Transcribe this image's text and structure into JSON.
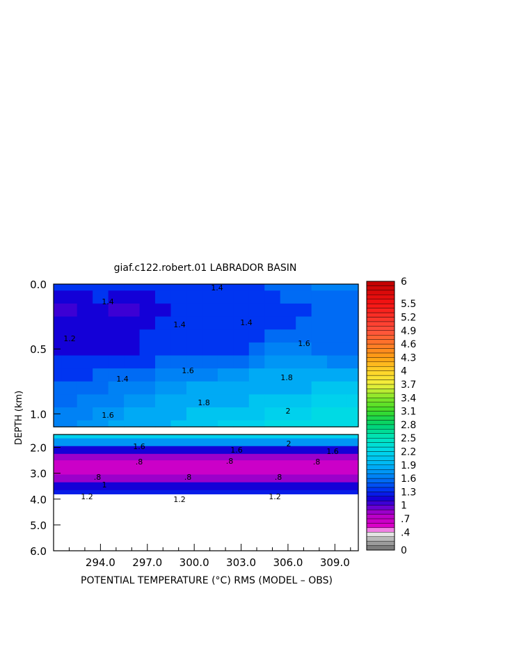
{
  "chart_data": {
    "type": "heatmap",
    "title": "giaf.c122.robert.01 LABRADOR BASIN",
    "xlabel": "POTENTIAL TEMPERATURE (°C) RMS (MODEL – OBS)",
    "ylabel": "DEPTH (km)",
    "xlim": [
      291.0,
      310.5
    ],
    "x_ticks": [
      "294.0",
      "297.0",
      "300.0",
      "303.0",
      "306.0",
      "309.0"
    ],
    "x_tick_values": [
      294.0,
      297.0,
      300.0,
      303.0,
      306.0,
      309.0
    ],
    "upper_panel": {
      "ylim": [
        0.0,
        1.1
      ],
      "y_ticks": [
        "0.0",
        "0.5",
        "1.0"
      ],
      "y_tick_values": [
        0.0,
        0.5,
        1.0
      ],
      "x": [
        291,
        292,
        293,
        294,
        295,
        296,
        297,
        298,
        299,
        300,
        301,
        302,
        303,
        304,
        305,
        306,
        307,
        308,
        309,
        310.5
      ],
      "depths": [
        0.0,
        0.1,
        0.2,
        0.3,
        0.4,
        0.5,
        0.6,
        0.7,
        0.8,
        0.9,
        1.0,
        1.1
      ],
      "values": [
        [
          1.3,
          1.3,
          1.4,
          1.4,
          1.4,
          1.3,
          1.3,
          1.3,
          1.4,
          1.4,
          1.4,
          1.4,
          1.4,
          1.4,
          1.5,
          1.5,
          1.5,
          1.6,
          1.6,
          1.6
        ],
        [
          1.2,
          1.2,
          1.2,
          1.3,
          1.2,
          1.2,
          1.2,
          1.3,
          1.3,
          1.4,
          1.4,
          1.4,
          1.4,
          1.4,
          1.4,
          1.5,
          1.5,
          1.5,
          1.5,
          1.5
        ],
        [
          1.0,
          1.0,
          1.1,
          1.1,
          1.0,
          1.0,
          1.1,
          1.2,
          1.3,
          1.3,
          1.3,
          1.3,
          1.3,
          1.4,
          1.4,
          1.4,
          1.4,
          1.5,
          1.5,
          1.5
        ],
        [
          1.2,
          1.2,
          1.1,
          1.1,
          1.1,
          1.2,
          1.2,
          1.3,
          1.4,
          1.4,
          1.3,
          1.3,
          1.3,
          1.3,
          1.4,
          1.4,
          1.5,
          1.5,
          1.5,
          1.5
        ],
        [
          1.2,
          1.2,
          1.2,
          1.2,
          1.2,
          1.2,
          1.3,
          1.4,
          1.4,
          1.4,
          1.4,
          1.3,
          1.3,
          1.4,
          1.5,
          1.5,
          1.5,
          1.5,
          1.5,
          1.5
        ],
        [
          1.1,
          1.2,
          1.2,
          1.2,
          1.1,
          1.2,
          1.3,
          1.4,
          1.4,
          1.4,
          1.4,
          1.4,
          1.4,
          1.5,
          1.6,
          1.6,
          1.6,
          1.5,
          1.5,
          1.5
        ],
        [
          1.3,
          1.3,
          1.3,
          1.3,
          1.3,
          1.3,
          1.4,
          1.5,
          1.5,
          1.5,
          1.5,
          1.5,
          1.5,
          1.6,
          1.7,
          1.7,
          1.7,
          1.7,
          1.6,
          1.6
        ],
        [
          1.4,
          1.4,
          1.4,
          1.5,
          1.5,
          1.5,
          1.5,
          1.6,
          1.6,
          1.6,
          1.6,
          1.7,
          1.7,
          1.8,
          1.8,
          1.8,
          1.8,
          1.8,
          1.8,
          1.8
        ],
        [
          1.5,
          1.5,
          1.5,
          1.5,
          1.6,
          1.6,
          1.6,
          1.7,
          1.7,
          1.8,
          1.8,
          1.8,
          1.8,
          1.9,
          1.9,
          1.9,
          1.9,
          2.0,
          2.0,
          2.0
        ],
        [
          1.5,
          1.5,
          1.6,
          1.6,
          1.6,
          1.7,
          1.7,
          1.8,
          1.8,
          1.9,
          1.9,
          1.9,
          1.9,
          2.0,
          2.0,
          2.0,
          2.0,
          2.1,
          2.1,
          2.1
        ],
        [
          1.6,
          1.6,
          1.6,
          1.7,
          1.7,
          1.8,
          1.8,
          1.8,
          1.9,
          2.0,
          2.0,
          2.0,
          2.0,
          2.0,
          2.1,
          2.1,
          2.1,
          2.2,
          2.2,
          2.2
        ],
        [
          1.6,
          1.6,
          1.7,
          1.7,
          1.8,
          1.8,
          1.9,
          1.9,
          2.0,
          2.0,
          2.0,
          2.1,
          2.1,
          2.1,
          2.2,
          2.2,
          2.2,
          2.2,
          2.2,
          2.2
        ]
      ]
    },
    "lower_panel": {
      "ylim": [
        1.5,
        6.0
      ],
      "y_ticks": [
        "2.0",
        "3.0",
        "4.0",
        "5.0",
        "6.0"
      ],
      "y_tick_values": [
        2.0,
        3.0,
        4.0,
        5.0,
        6.0
      ],
      "data_bottom_depth": 3.8,
      "depths": [
        1.5,
        1.8,
        2.1,
        2.4,
        2.6,
        2.9,
        3.2,
        3.5,
        3.8
      ],
      "profile": [
        2.1,
        1.7,
        1.2,
        0.8,
        0.65,
        0.65,
        0.85,
        1.15,
        1.25
      ]
    },
    "contour_labels": [
      "1.4",
      "1.2",
      "1.6",
      "1.8",
      "2",
      ".8",
      "1"
    ],
    "colorbar": {
      "range": [
        0,
        6
      ],
      "tick_labels": [
        "0",
        ".4",
        ".7",
        "1",
        "1.3",
        "1.6",
        "1.9",
        "2.2",
        "2.5",
        "2.8",
        "3.1",
        "3.4",
        "3.7",
        "4",
        "4.3",
        "4.6",
        "4.9",
        "5.2",
        "5.5",
        "6"
      ],
      "tick_values": [
        0,
        0.4,
        0.7,
        1.0,
        1.3,
        1.6,
        1.9,
        2.2,
        2.5,
        2.8,
        3.1,
        3.4,
        3.7,
        4.0,
        4.3,
        4.6,
        4.9,
        5.2,
        5.5,
        6.0
      ]
    },
    "grid": false,
    "legend": "right colorbar"
  }
}
